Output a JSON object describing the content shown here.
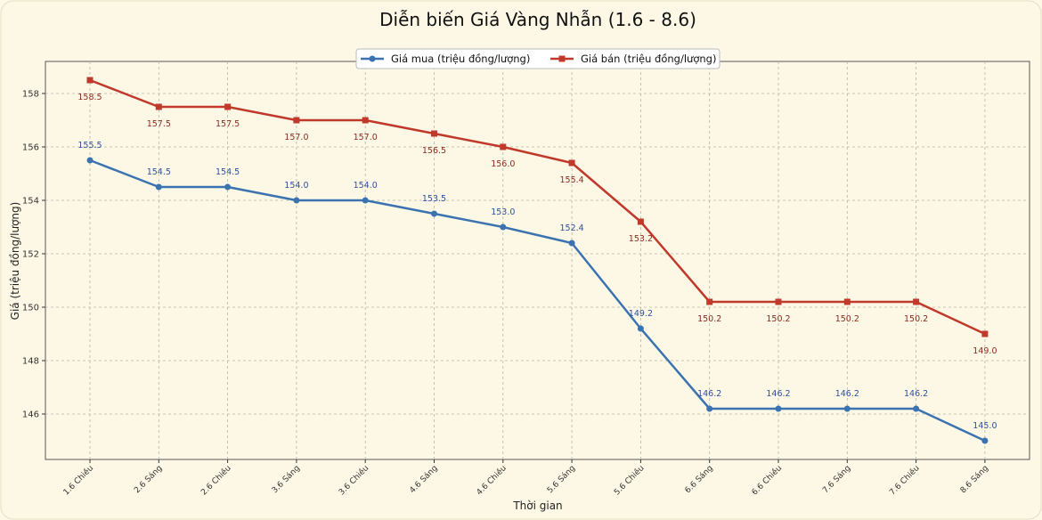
{
  "chart_data": {
    "type": "line",
    "title": "Diễn biến Giá Vàng Nhẫn (1.6 - 8.6)",
    "xlabel": "Thời gian",
    "ylabel": "Giá (triệu đồng/lượng)",
    "categories": [
      "1.6 Chiều",
      "2.6 Sáng",
      "2.6 Chiều",
      "3.6 Sáng",
      "3.6 Chiều",
      "4.6 Sáng",
      "4.6 Chiều",
      "5.6 Sáng",
      "5.6 Chiều",
      "6.6 Sáng",
      "6.6 Chiều",
      "7.6 Sáng",
      "7.6 Chiều",
      "8.6 Sáng"
    ],
    "ylim": [
      144.3,
      159.2
    ],
    "yticks": [
      146,
      148,
      150,
      152,
      154,
      156,
      158
    ],
    "grid": true,
    "legend_position": "top-center",
    "series": [
      {
        "name": "Giá mua (triệu đồng/lượng)",
        "color": "#3b73b0",
        "marker": "circle",
        "values": [
          155.5,
          154.5,
          154.5,
          154.0,
          154.0,
          153.5,
          153.0,
          152.4,
          149.2,
          146.2,
          146.2,
          146.2,
          146.2,
          145.0
        ],
        "labels": [
          "155.5",
          "154.5",
          "154.5",
          "154.0",
          "154.0",
          "153.5",
          "153.0",
          "152.4",
          "149.2",
          "146.2",
          "146.2",
          "146.2",
          "146.2",
          "145.0"
        ],
        "label_color": "#2d4f9e"
      },
      {
        "name": "Giá bán (triệu đồng/lượng)",
        "color": "#c0392b",
        "marker": "square",
        "values": [
          158.5,
          157.5,
          157.5,
          157.0,
          157.0,
          156.5,
          156.0,
          155.4,
          153.2,
          150.2,
          150.2,
          150.2,
          150.2,
          149.0
        ],
        "labels": [
          "158.5",
          "157.5",
          "157.5",
          "157.0",
          "157.0",
          "156.5",
          "156.0",
          "155.4",
          "153.2",
          "150.2",
          "150.2",
          "150.2",
          "150.2",
          "149.0"
        ],
        "label_color": "#8b2a1f"
      }
    ]
  }
}
